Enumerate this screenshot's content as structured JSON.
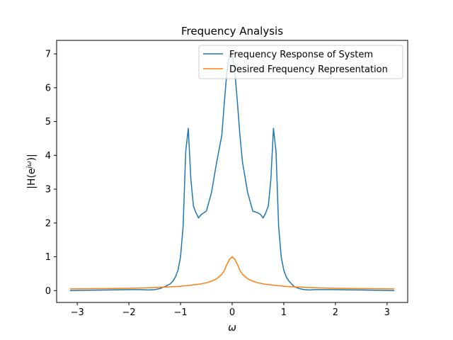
{
  "chart_data": {
    "type": "line",
    "title": "Frequency Analysis",
    "xlabel": "ω",
    "ylabel": "|H(e^{jω})|",
    "xlim": [
      -3.4,
      3.4
    ],
    "ylim": [
      -0.35,
      7.4
    ],
    "xticks": [
      -3,
      -2,
      -1,
      0,
      1,
      2,
      3
    ],
    "xtick_labels": [
      "−3",
      "−2",
      "−1",
      "0",
      "1",
      "2",
      "3"
    ],
    "yticks": [
      0,
      1,
      2,
      3,
      4,
      5,
      6,
      7
    ],
    "ytick_labels": [
      "0",
      "1",
      "2",
      "3",
      "4",
      "5",
      "6",
      "7"
    ],
    "grid": false,
    "legend_position": "top-right",
    "series": [
      {
        "name": "Frequency Response of System",
        "color": "#1f77b4",
        "x": [
          -3.14,
          -2.8,
          -2.4,
          -2.0,
          -1.8,
          -1.6,
          -1.5,
          -1.4,
          -1.3,
          -1.2,
          -1.15,
          -1.1,
          -1.05,
          -1.0,
          -0.95,
          -0.9,
          -0.85,
          -0.8,
          -0.75,
          -0.7,
          -0.65,
          -0.6,
          -0.55,
          -0.5,
          -0.4,
          -0.3,
          -0.2,
          -0.15,
          -0.1,
          -0.05,
          0.0,
          0.05,
          0.1,
          0.15,
          0.2,
          0.3,
          0.4,
          0.5,
          0.55,
          0.6,
          0.65,
          0.7,
          0.75,
          0.8,
          0.85,
          0.9,
          0.95,
          1.0,
          1.05,
          1.1,
          1.15,
          1.2,
          1.3,
          1.4,
          1.5,
          1.6,
          1.8,
          2.0,
          2.4,
          2.8,
          3.14
        ],
        "y": [
          0.0,
          0.01,
          0.02,
          0.03,
          0.03,
          0.02,
          0.03,
          0.06,
          0.12,
          0.2,
          0.28,
          0.4,
          0.6,
          1.0,
          1.9,
          4.1,
          4.8,
          3.3,
          2.5,
          2.3,
          2.15,
          2.25,
          2.3,
          2.35,
          2.9,
          3.8,
          4.6,
          5.6,
          6.5,
          7.0,
          7.0,
          6.5,
          5.6,
          4.6,
          3.8,
          2.9,
          2.35,
          2.3,
          2.25,
          2.15,
          2.3,
          2.5,
          3.3,
          4.8,
          4.1,
          1.9,
          1.0,
          0.6,
          0.4,
          0.28,
          0.2,
          0.12,
          0.06,
          0.03,
          0.02,
          0.03,
          0.03,
          0.03,
          0.02,
          0.01,
          0.0
        ]
      },
      {
        "name": "Desired Frequency Representation",
        "color": "#ff7f0e",
        "x": [
          -3.14,
          -2.8,
          -2.4,
          -2.0,
          -1.6,
          -1.2,
          -1.0,
          -0.8,
          -0.6,
          -0.5,
          -0.4,
          -0.3,
          -0.2,
          -0.15,
          -0.1,
          -0.05,
          0.0,
          0.05,
          0.1,
          0.15,
          0.2,
          0.3,
          0.4,
          0.5,
          0.6,
          0.8,
          1.0,
          1.2,
          1.6,
          2.0,
          2.4,
          2.8,
          3.14
        ],
        "y": [
          0.05,
          0.055,
          0.06,
          0.07,
          0.085,
          0.11,
          0.13,
          0.16,
          0.2,
          0.23,
          0.28,
          0.35,
          0.48,
          0.6,
          0.78,
          0.93,
          1.0,
          0.93,
          0.78,
          0.6,
          0.48,
          0.35,
          0.28,
          0.23,
          0.2,
          0.16,
          0.13,
          0.11,
          0.085,
          0.07,
          0.06,
          0.055,
          0.05
        ]
      }
    ]
  }
}
